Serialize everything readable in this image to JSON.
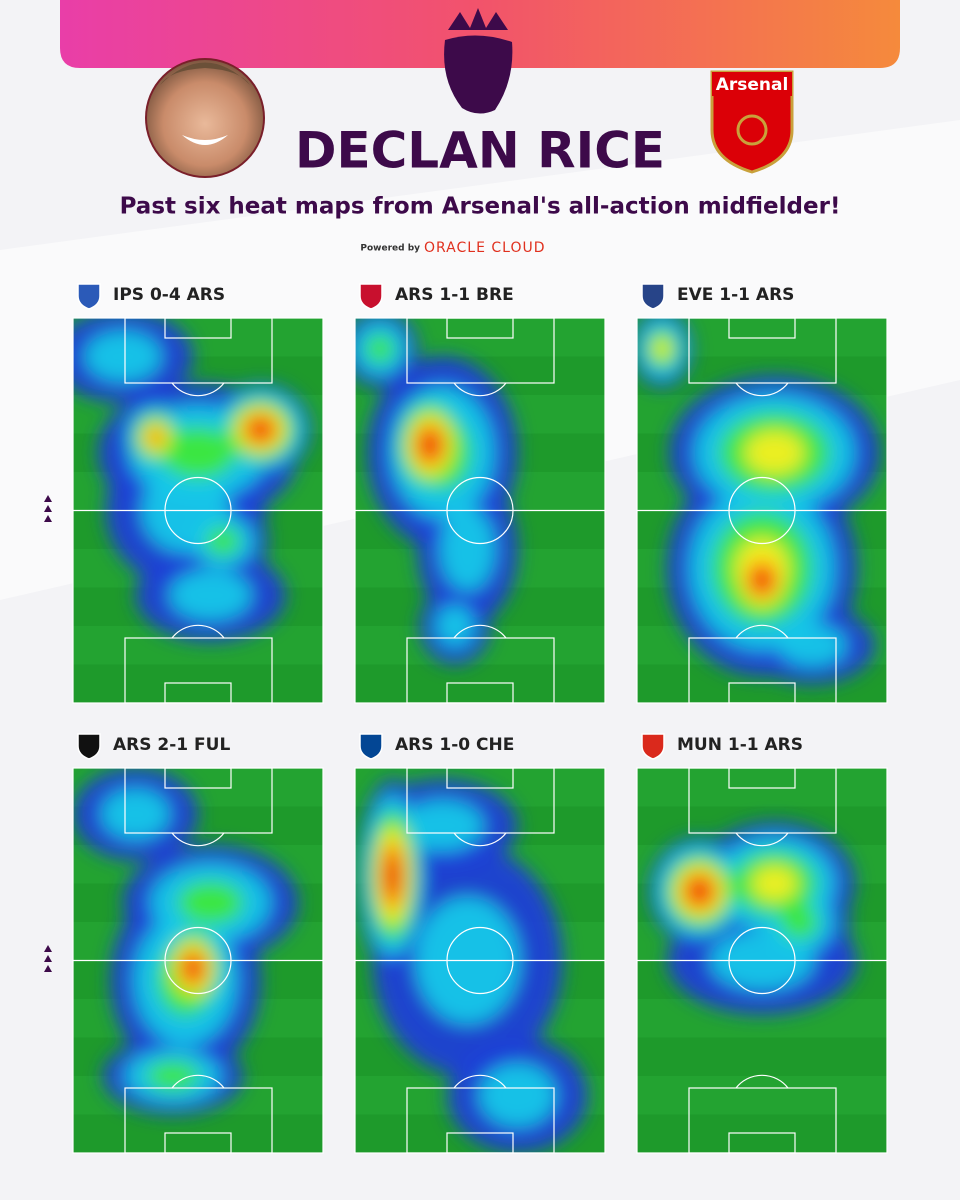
{
  "header": {
    "title": "DECLAN RICE",
    "subtitle": "Past six heat maps from Arsenal's all-action midfielder!",
    "powered_by": "Powered by",
    "sponsor": "ORACLE CLOUD",
    "club_badge": "Arsenal"
  },
  "matches": [
    {
      "label": "IPS 0-4 ARS"
    },
    {
      "label": "ARS 1-1 BRE"
    },
    {
      "label": "EVE 1-1 ARS"
    },
    {
      "label": "ARS 2-1 FUL"
    },
    {
      "label": "ARS 1-0 CHE"
    },
    {
      "label": "MUN 1-1 ARS"
    }
  ]
}
